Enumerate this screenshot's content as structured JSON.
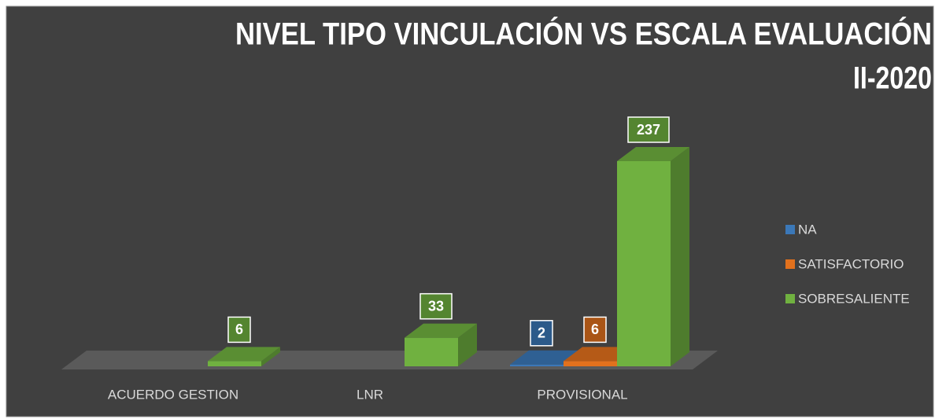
{
  "chart_data": {
    "type": "bar3d",
    "title": [
      "NIVEL TIPO VINCULACIÓN VS ESCALA EVALUACIÓN",
      "II-2020"
    ],
    "categories": [
      "ACUERDO GESTION",
      "LNR",
      "PROVISIONAL"
    ],
    "series": [
      {
        "name": "NA",
        "color": "#3b78b8",
        "values": [
          null,
          null,
          2
        ]
      },
      {
        "name": "SATISFACTORIO",
        "color": "#e2711d",
        "values": [
          null,
          null,
          6
        ]
      },
      {
        "name": "SOBRESALIENTE",
        "color": "#70b140",
        "values": [
          6,
          33,
          237
        ]
      }
    ],
    "legend": "right"
  }
}
